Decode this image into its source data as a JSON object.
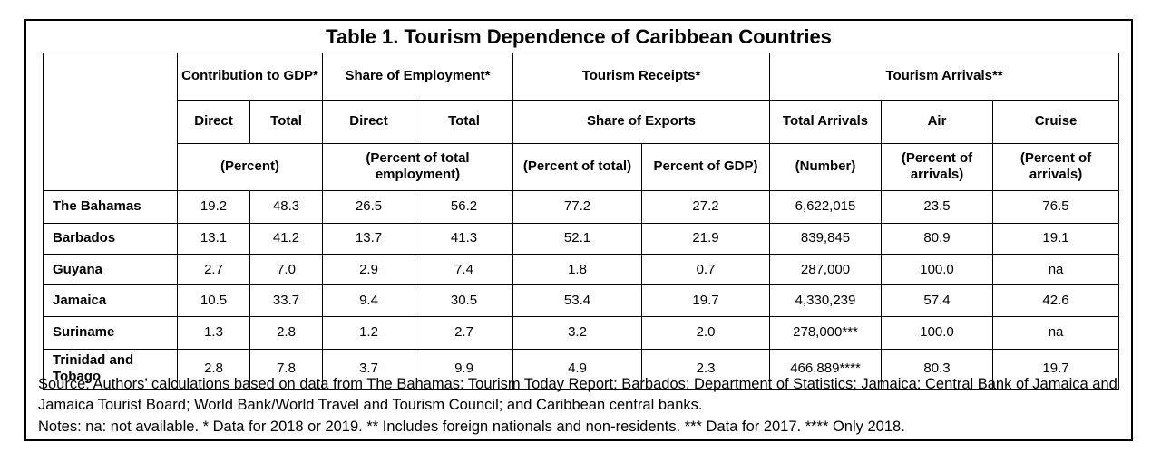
{
  "title": "Table 1. Tourism Dependence of Caribbean Countries",
  "header": {
    "group1": "Contribution to GDP*",
    "group2": "Share of Employment*",
    "group3": "Tourism Receipts*",
    "group4": "Tourism Arrivals**",
    "direct": "Direct",
    "total": "Total",
    "share_of_exports": "Share of Exports",
    "total_arrivals": "Total Arrivals",
    "air": "Air",
    "cruise": "Cruise",
    "unit_percent": "(Percent)",
    "unit_employment": "(Percent of total employment)",
    "unit_receipts_total": "(Percent of total)",
    "unit_receipts_gdp": "Percent of GDP)",
    "unit_number": "(Number)",
    "unit_air": "(Percent of arrivals)",
    "unit_cruise": "(Percent of arrivals)"
  },
  "rows": [
    {
      "country": "The Bahamas",
      "values": [
        "19.2",
        "48.3",
        "26.5",
        "56.2",
        "77.2",
        "27.2",
        "6,622,015",
        "23.5",
        "76.5"
      ]
    },
    {
      "country": "Barbados",
      "values": [
        "13.1",
        "41.2",
        "13.7",
        "41.3",
        "52.1",
        "21.9",
        "839,845",
        "80.9",
        "19.1"
      ]
    },
    {
      "country": "Guyana",
      "values": [
        "2.7",
        "7.0",
        "2.9",
        "7.4",
        "1.8",
        "0.7",
        "287,000",
        "100.0",
        "na"
      ]
    },
    {
      "country": "Jamaica",
      "values": [
        "10.5",
        "33.7",
        "9.4",
        "30.5",
        "53.4",
        "19.7",
        "4,330,239",
        "57.4",
        "42.6"
      ]
    },
    {
      "country": "Suriname",
      "values": [
        "1.3",
        "2.8",
        "1.2",
        "2.7",
        "3.2",
        "2.0",
        "278,000***",
        "100.0",
        "na"
      ]
    },
    {
      "country": "Trinidad and Tobago",
      "values": [
        "2.8",
        "7.8",
        "3.7",
        "9.9",
        "4.9",
        "2.3",
        "466,889****",
        "80.3",
        "19.7"
      ]
    }
  ],
  "source": "Source: Authors’ calculations based on data from The Bahamas: Tourism Today Report; Barbados: Department of Statistics; Jamaica: Central Bank of Jamaica and Jamaica Tourist Board; World Bank/World Travel and Tourism Council; and Caribbean central banks.",
  "notes": "Notes: na: not available. * Data for 2018 or 2019. ** Includes foreign nationals and non-residents. *** Data for 2017. **** Only 2018."
}
